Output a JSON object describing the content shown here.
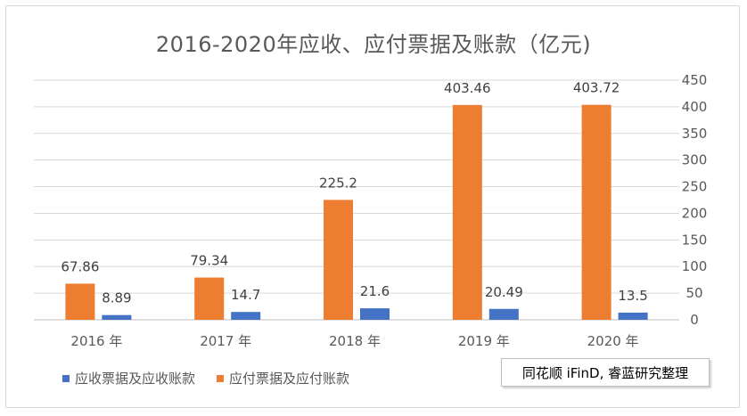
{
  "chart_data": {
    "type": "bar",
    "title": "2016-2020年应收、应付票据及账款（亿元)",
    "categories": [
      "2016 年",
      "2017 年",
      "2018 年",
      "2019 年",
      "2020 年"
    ],
    "series": [
      {
        "name": "应付票据及应付账款",
        "color": "#ED7D31",
        "values": [
          67.86,
          79.34,
          225.2,
          403.46,
          403.72
        ],
        "labels": [
          "67.86",
          "79.34",
          "225.2",
          "403.46",
          "403.72"
        ]
      },
      {
        "name": "应收票据及应收账款",
        "color": "#4472C4",
        "values": [
          8.89,
          14.7,
          21.6,
          20.49,
          13.5
        ],
        "labels": [
          "8.89",
          "14.7",
          "21.6",
          "20.49",
          "13.5"
        ]
      }
    ],
    "ylim": [
      0,
      450
    ],
    "yticks": [
      0,
      50,
      100,
      150,
      200,
      250,
      300,
      350,
      400,
      450
    ],
    "y_axis_side": "right",
    "grid": true,
    "legend_position": "bottom-left",
    "legend_order": [
      "应收票据及应收账款",
      "应付票据及应付账款"
    ]
  },
  "source_note": "同花顺 iFinD, 睿蓝研究整理"
}
